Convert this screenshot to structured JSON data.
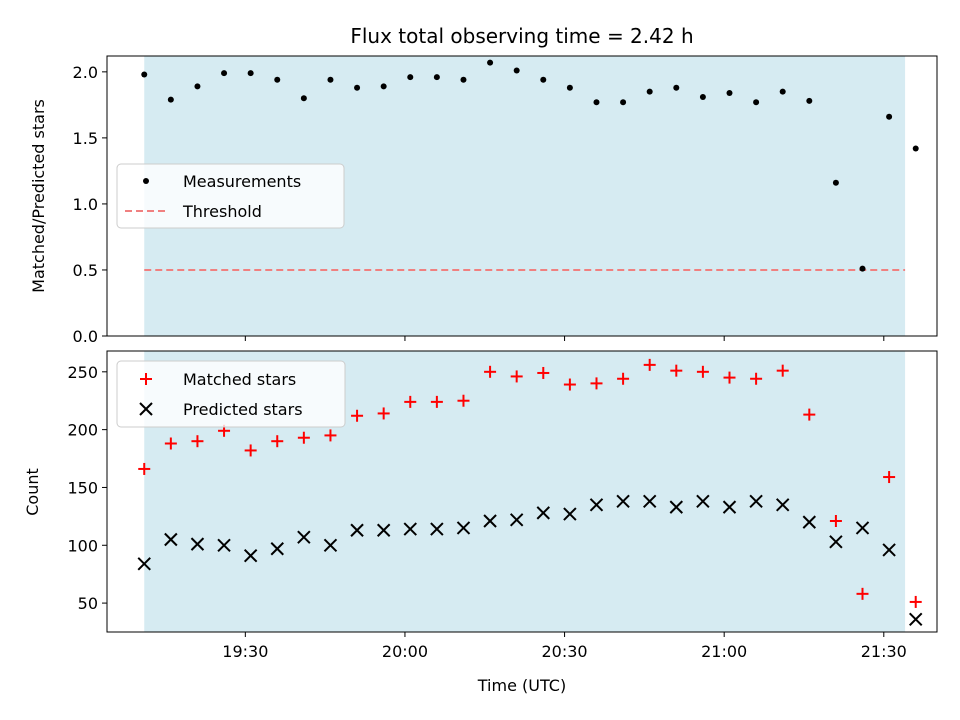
{
  "chart_data": [
    {
      "type": "scatter",
      "title": "Flux total observing time = 2.42 h",
      "xlabel": "",
      "ylabel": "Matched/Predicted stars",
      "ylim": [
        0,
        2.12
      ],
      "yticks": [
        "0.0",
        "0.5",
        "1.0",
        "1.5",
        "2.0"
      ],
      "shaded_region": {
        "x_start": "19:11",
        "x_end": "21:34",
        "color": "#add8e6"
      },
      "threshold": {
        "name": "Threshold",
        "value": 0.5,
        "color": "#f08080",
        "style": "dashed"
      },
      "legend": {
        "placement": "center-left",
        "entries": [
          "Measurements",
          "Threshold"
        ]
      },
      "series": [
        {
          "name": "Measurements",
          "color": "#000000",
          "marker": "dot",
          "x": [
            "19:11",
            "19:16",
            "19:21",
            "19:26",
            "19:31",
            "19:36",
            "19:41",
            "19:46",
            "19:51",
            "19:56",
            "20:01",
            "20:06",
            "20:11",
            "20:16",
            "20:21",
            "20:26",
            "20:31",
            "20:36",
            "20:41",
            "20:46",
            "20:51",
            "20:56",
            "21:01",
            "21:06",
            "21:11",
            "21:16",
            "21:21",
            "21:26",
            "21:31",
            "21:36"
          ],
          "values": [
            1.98,
            1.79,
            1.89,
            1.99,
            1.99,
            1.94,
            1.8,
            1.94,
            1.88,
            1.89,
            1.96,
            1.96,
            1.94,
            2.07,
            2.01,
            1.94,
            1.88,
            1.77,
            1.77,
            1.85,
            1.88,
            1.81,
            1.84,
            1.77,
            1.85,
            1.78,
            1.16,
            0.51,
            1.66,
            1.42
          ]
        }
      ]
    },
    {
      "type": "scatter",
      "title": "",
      "xlabel": "Time (UTC)",
      "ylabel": "Count",
      "ylim": [
        25,
        268
      ],
      "yticks": [
        "50",
        "100",
        "150",
        "200",
        "250"
      ],
      "xticks": [
        "19:30",
        "20:00",
        "20:30",
        "21:00",
        "21:30"
      ],
      "xlim": [
        "19:04",
        "21:40"
      ],
      "shaded_region": {
        "x_start": "19:11",
        "x_end": "21:34",
        "color": "#add8e6"
      },
      "legend": {
        "placement": "top-left",
        "entries": [
          "Matched stars",
          "Predicted stars"
        ]
      },
      "series": [
        {
          "name": "Matched stars",
          "color": "#ff0000",
          "marker": "plus",
          "x": [
            "19:11",
            "19:16",
            "19:21",
            "19:26",
            "19:31",
            "19:36",
            "19:41",
            "19:46",
            "19:51",
            "19:56",
            "20:01",
            "20:06",
            "20:11",
            "20:16",
            "20:21",
            "20:26",
            "20:31",
            "20:36",
            "20:41",
            "20:46",
            "20:51",
            "20:56",
            "21:01",
            "21:06",
            "21:11",
            "21:16",
            "21:21",
            "21:26",
            "21:31",
            "21:36"
          ],
          "values": [
            166,
            188,
            190,
            199,
            182,
            190,
            193,
            195,
            212,
            214,
            224,
            224,
            225,
            250,
            246,
            249,
            239,
            240,
            244,
            256,
            251,
            250,
            245,
            244,
            251,
            213,
            121,
            58,
            159,
            51
          ]
        },
        {
          "name": "Predicted stars",
          "color": "#000000",
          "marker": "x",
          "x": [
            "19:11",
            "19:16",
            "19:21",
            "19:26",
            "19:31",
            "19:36",
            "19:41",
            "19:46",
            "19:51",
            "19:56",
            "20:01",
            "20:06",
            "20:11",
            "20:16",
            "20:21",
            "20:26",
            "20:31",
            "20:36",
            "20:41",
            "20:46",
            "20:51",
            "20:56",
            "21:01",
            "21:06",
            "21:11",
            "21:16",
            "21:21",
            "21:26",
            "21:31",
            "21:36"
          ],
          "values": [
            84,
            105,
            101,
            100,
            91,
            97,
            107,
            100,
            113,
            113,
            114,
            114,
            115,
            121,
            122,
            128,
            127,
            135,
            138,
            138,
            133,
            138,
            133,
            138,
            135,
            120,
            103,
            115,
            96,
            36
          ]
        }
      ]
    }
  ]
}
